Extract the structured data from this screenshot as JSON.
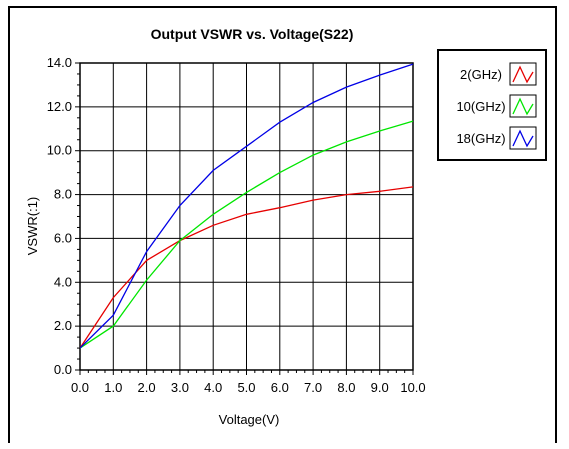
{
  "chart_data": {
    "type": "line",
    "title": "Output VSWR vs. Voltage(S22)",
    "xlabel": "Voltage(V)",
    "ylabel": "VSWR(:1)",
    "xlim": [
      0,
      10
    ],
    "ylim": [
      0,
      14
    ],
    "x_ticks": [
      "0.0",
      "1.0",
      "2.0",
      "3.0",
      "4.0",
      "5.0",
      "6.0",
      "7.0",
      "8.0",
      "9.0",
      "10.0"
    ],
    "y_ticks": [
      "0.0",
      "2.0",
      "4.0",
      "6.0",
      "8.0",
      "10.0",
      "12.0",
      "14.0"
    ],
    "grid": true,
    "legend_position": "top-right",
    "x": [
      0,
      1,
      2,
      3,
      4,
      5,
      6,
      7,
      8,
      9,
      10
    ],
    "series": [
      {
        "name": "2(GHz)",
        "color": "#e60000",
        "values": [
          1.0,
          3.3,
          5.0,
          5.9,
          6.6,
          7.1,
          7.4,
          7.75,
          8.0,
          8.15,
          8.35
        ]
      },
      {
        "name": "10(GHz)",
        "color": "#00e600",
        "values": [
          1.0,
          2.0,
          4.1,
          5.9,
          7.1,
          8.1,
          9.0,
          9.8,
          10.4,
          10.9,
          11.35
        ]
      },
      {
        "name": "18(GHz)",
        "color": "#0000e6",
        "values": [
          1.0,
          2.5,
          5.4,
          7.5,
          9.1,
          10.2,
          11.3,
          12.2,
          12.9,
          13.45,
          13.95
        ]
      }
    ]
  }
}
